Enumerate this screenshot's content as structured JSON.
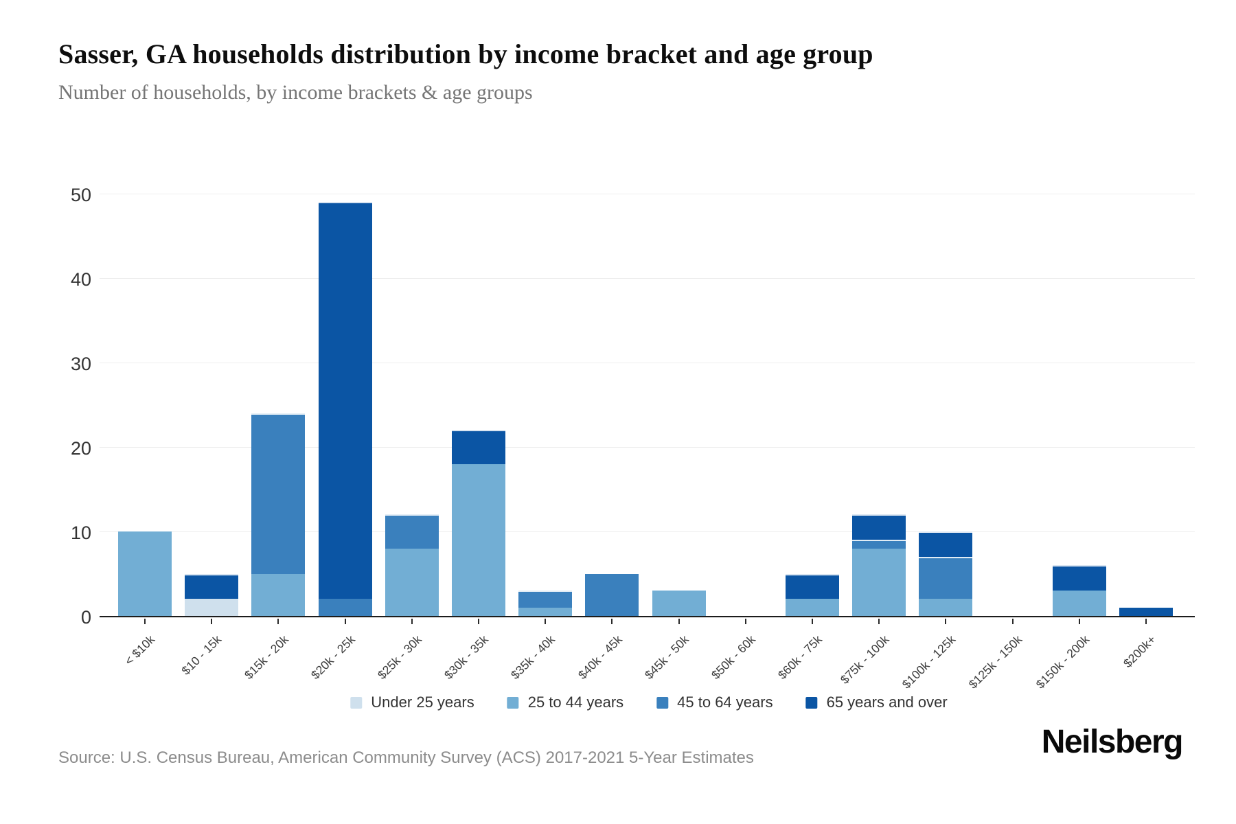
{
  "title": "Sasser, GA households distribution by income bracket and age group",
  "subtitle": "Number of households, by income brackets & age groups",
  "source": "Source: U.S. Census Bureau, American Community Survey (ACS) 2017-2021 5-Year Estimates",
  "brand": "Neilsberg",
  "colors": {
    "under_25": "#cfe0ed",
    "25_to_44": "#72aed4",
    "45_to_64": "#3a80bd",
    "65_and_over": "#0b55a4",
    "gridline": "#ededed",
    "axis_line": "#1c1c1c",
    "title_text": "#0d0d0d",
    "subtitle_text": "#757575",
    "tick_text": "#333333",
    "source_text": "#8c8c8c"
  },
  "chart_data": {
    "type": "bar",
    "stacked": true,
    "title": "Sasser, GA households distribution by income bracket and age group",
    "subtitle": "Number of households, by income brackets & age groups",
    "xlabel": "",
    "ylabel": "",
    "ylim": [
      0,
      50
    ],
    "yticks": [
      0,
      10,
      20,
      30,
      40,
      50
    ],
    "grid": true,
    "legend_position": "bottom",
    "categories": [
      "< $10k",
      "$10 - 15k",
      "$15k - 20k",
      "$20k - 25k",
      "$25k - 30k",
      "$30k - 35k",
      "$35k - 40k",
      "$40k - 45k",
      "$45k - 50k",
      "$50k - 60k",
      "$60k - 75k",
      "$75k - 100k",
      "$100k - 125k",
      "$125k - 150k",
      "$150k - 200k",
      "$200k+"
    ],
    "series": [
      {
        "name": "Under 25 years",
        "color": "#cfe0ed",
        "values": [
          0,
          2,
          0,
          0,
          0,
          0,
          0,
          0,
          0,
          0,
          0,
          0,
          0,
          0,
          0,
          0
        ]
      },
      {
        "name": "25 to 44 years",
        "color": "#72aed4",
        "values": [
          10,
          0,
          5,
          0,
          8,
          18,
          1,
          0,
          3,
          0,
          2,
          8,
          2,
          0,
          3,
          0
        ]
      },
      {
        "name": "45 to 64 years",
        "color": "#3a80bd",
        "values": [
          0,
          0,
          19,
          2,
          4,
          0,
          2,
          5,
          0,
          0,
          0,
          1,
          5,
          0,
          0,
          0
        ]
      },
      {
        "name": "65 years and over",
        "color": "#0b55a4",
        "values": [
          0,
          3,
          0,
          47,
          0,
          4,
          0,
          0,
          0,
          0,
          3,
          3,
          3,
          0,
          3,
          1
        ]
      }
    ],
    "totals": [
      10,
      5,
      24,
      49,
      12,
      22,
      3,
      5,
      3,
      0,
      5,
      12,
      10,
      0,
      6,
      1
    ]
  }
}
